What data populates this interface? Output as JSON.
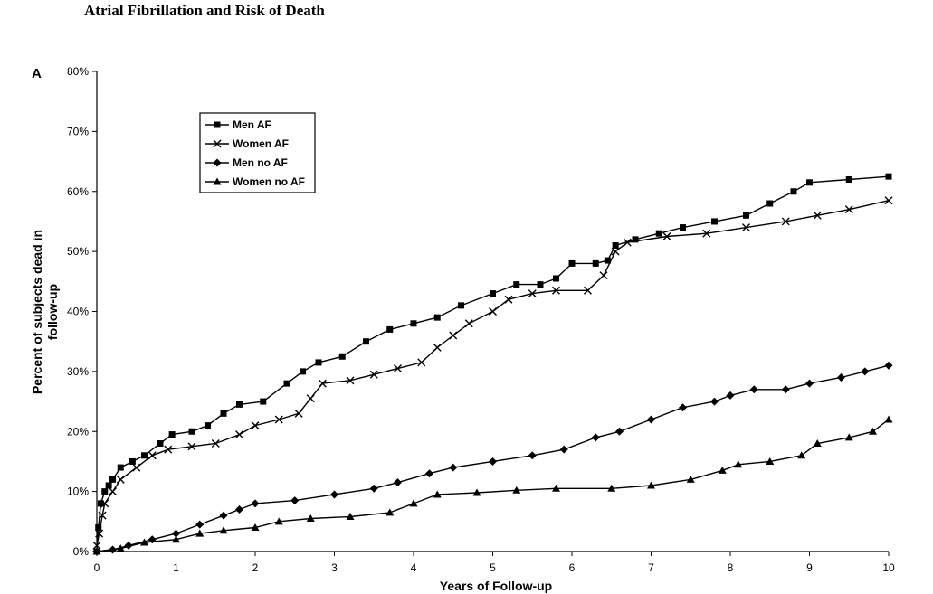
{
  "figure": {
    "heading": "Atrial Fibrillation and Risk of Death",
    "panel_label": "A"
  },
  "chart_data": {
    "type": "line",
    "title": "Atrial Fibrillation and Risk of Death",
    "xlabel": "Years of Follow-up",
    "ylabel_lines": [
      "Percent of subjects dead in",
      "follow-up"
    ],
    "xlim": [
      0,
      10
    ],
    "ylim": [
      0,
      80
    ],
    "x_ticks": [
      0,
      1,
      2,
      3,
      4,
      5,
      6,
      7,
      8,
      9,
      10
    ],
    "x_tick_labels": [
      "0",
      "1",
      "2",
      "3",
      "4",
      "5",
      "6",
      "7",
      "8",
      "9",
      "10"
    ],
    "y_ticks": [
      0,
      10,
      20,
      30,
      40,
      50,
      60,
      70,
      80
    ],
    "y_tick_labels": [
      "0%",
      "10%",
      "20%",
      "30%",
      "40%",
      "50%",
      "60%",
      "70%",
      "80%"
    ],
    "grid": false,
    "legend_position": "top-left",
    "series": [
      {
        "name": "Men AF",
        "marker": "square",
        "points": [
          [
            0,
            0
          ],
          [
            0.02,
            4
          ],
          [
            0.05,
            8
          ],
          [
            0.1,
            10
          ],
          [
            0.15,
            11
          ],
          [
            0.2,
            12
          ],
          [
            0.3,
            14
          ],
          [
            0.45,
            15
          ],
          [
            0.6,
            16
          ],
          [
            0.8,
            18
          ],
          [
            0.95,
            19.5
          ],
          [
            1.2,
            20
          ],
          [
            1.4,
            21
          ],
          [
            1.6,
            23
          ],
          [
            1.8,
            24.5
          ],
          [
            2.1,
            25
          ],
          [
            2.4,
            28
          ],
          [
            2.6,
            30
          ],
          [
            2.8,
            31.5
          ],
          [
            3.1,
            32.5
          ],
          [
            3.4,
            35
          ],
          [
            3.7,
            37
          ],
          [
            4.0,
            38
          ],
          [
            4.3,
            39
          ],
          [
            4.6,
            41
          ],
          [
            5.0,
            43
          ],
          [
            5.3,
            44.5
          ],
          [
            5.6,
            44.5
          ],
          [
            5.8,
            45.5
          ],
          [
            6.0,
            48
          ],
          [
            6.3,
            48
          ],
          [
            6.45,
            48.5
          ],
          [
            6.55,
            51
          ],
          [
            6.8,
            52
          ],
          [
            7.1,
            53
          ],
          [
            7.4,
            54
          ],
          [
            7.8,
            55
          ],
          [
            8.2,
            56
          ],
          [
            8.5,
            58
          ],
          [
            8.8,
            60
          ],
          [
            9.0,
            61.5
          ],
          [
            9.5,
            62
          ],
          [
            10,
            62.5
          ]
        ]
      },
      {
        "name": "Women AF",
        "marker": "x",
        "points": [
          [
            0,
            1
          ],
          [
            0.03,
            3
          ],
          [
            0.07,
            6
          ],
          [
            0.1,
            8
          ],
          [
            0.2,
            10
          ],
          [
            0.3,
            12
          ],
          [
            0.5,
            14
          ],
          [
            0.7,
            16
          ],
          [
            0.9,
            17
          ],
          [
            1.2,
            17.5
          ],
          [
            1.5,
            18
          ],
          [
            1.8,
            19.5
          ],
          [
            2.0,
            21
          ],
          [
            2.3,
            22
          ],
          [
            2.55,
            23
          ],
          [
            2.7,
            25.5
          ],
          [
            2.85,
            28
          ],
          [
            3.2,
            28.5
          ],
          [
            3.5,
            29.5
          ],
          [
            3.8,
            30.5
          ],
          [
            4.1,
            31.5
          ],
          [
            4.3,
            34
          ],
          [
            4.5,
            36
          ],
          [
            4.7,
            38
          ],
          [
            5.0,
            40
          ],
          [
            5.2,
            42
          ],
          [
            5.5,
            43
          ],
          [
            5.8,
            43.5
          ],
          [
            6.2,
            43.5
          ],
          [
            6.4,
            46
          ],
          [
            6.55,
            50
          ],
          [
            6.7,
            51.5
          ],
          [
            7.2,
            52.5
          ],
          [
            7.7,
            53
          ],
          [
            8.2,
            54
          ],
          [
            8.7,
            55
          ],
          [
            9.1,
            56
          ],
          [
            9.5,
            57
          ],
          [
            10,
            58.5
          ]
        ]
      },
      {
        "name": "Men no AF",
        "marker": "diamond",
        "points": [
          [
            0,
            0
          ],
          [
            0.2,
            0.3
          ],
          [
            0.4,
            1
          ],
          [
            0.7,
            2
          ],
          [
            1.0,
            3
          ],
          [
            1.3,
            4.5
          ],
          [
            1.6,
            6
          ],
          [
            1.8,
            7
          ],
          [
            2.0,
            8
          ],
          [
            2.5,
            8.5
          ],
          [
            3.0,
            9.5
          ],
          [
            3.5,
            10.5
          ],
          [
            3.8,
            11.5
          ],
          [
            4.2,
            13
          ],
          [
            4.5,
            14
          ],
          [
            5.0,
            15
          ],
          [
            5.5,
            16
          ],
          [
            5.9,
            17
          ],
          [
            6.3,
            19
          ],
          [
            6.6,
            20
          ],
          [
            7.0,
            22
          ],
          [
            7.4,
            24
          ],
          [
            7.8,
            25
          ],
          [
            8.0,
            26
          ],
          [
            8.3,
            27
          ],
          [
            8.7,
            27
          ],
          [
            9.0,
            28
          ],
          [
            9.4,
            29
          ],
          [
            9.7,
            30
          ],
          [
            10,
            31
          ]
        ]
      },
      {
        "name": "Women no AF",
        "marker": "triangle",
        "points": [
          [
            0,
            0
          ],
          [
            0.3,
            0.5
          ],
          [
            0.6,
            1.5
          ],
          [
            1.0,
            2
          ],
          [
            1.3,
            3
          ],
          [
            1.6,
            3.5
          ],
          [
            2.0,
            4
          ],
          [
            2.3,
            5
          ],
          [
            2.7,
            5.5
          ],
          [
            3.2,
            5.8
          ],
          [
            3.7,
            6.5
          ],
          [
            4.0,
            8
          ],
          [
            4.3,
            9.5
          ],
          [
            4.8,
            9.8
          ],
          [
            5.3,
            10.2
          ],
          [
            5.8,
            10.5
          ],
          [
            6.5,
            10.5
          ],
          [
            7.0,
            11
          ],
          [
            7.5,
            12
          ],
          [
            7.9,
            13.5
          ],
          [
            8.1,
            14.5
          ],
          [
            8.5,
            15
          ],
          [
            8.9,
            16
          ],
          [
            9.1,
            18
          ],
          [
            9.5,
            19
          ],
          [
            9.8,
            20
          ],
          [
            10,
            22
          ]
        ]
      }
    ]
  }
}
